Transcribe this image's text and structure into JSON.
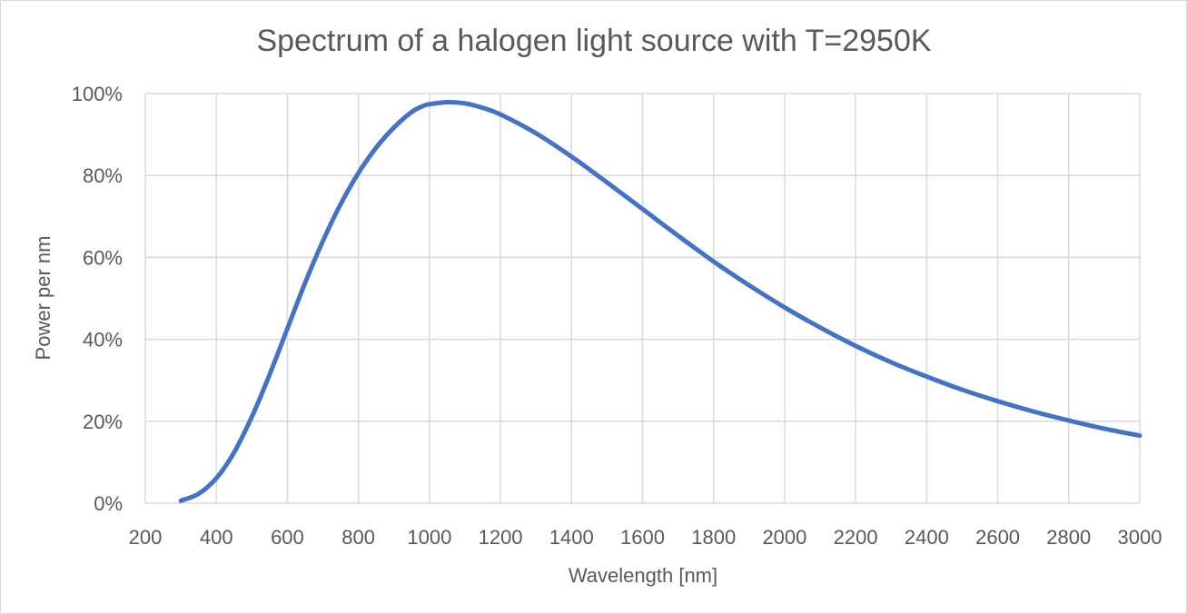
{
  "chart_data": {
    "type": "line",
    "title": "Spectrum of a halogen light source with T=2950K",
    "xlabel": "Wavelength [nm]",
    "ylabel": "Power per nm",
    "xlim": [
      200,
      3000
    ],
    "ylim": [
      0,
      100
    ],
    "x_ticks": [
      200,
      400,
      600,
      800,
      1000,
      1200,
      1400,
      1600,
      1800,
      2000,
      2200,
      2400,
      2600,
      2800,
      3000
    ],
    "x_tick_labels": [
      "200",
      "400",
      "600",
      "800",
      "1000",
      "1200",
      "1400",
      "1600",
      "1800",
      "2000",
      "2200",
      "2400",
      "2600",
      "2800",
      "3000"
    ],
    "y_ticks": [
      0,
      20,
      40,
      60,
      80,
      100
    ],
    "y_tick_labels": [
      "0%",
      "20%",
      "40%",
      "60%",
      "80%",
      "100%"
    ],
    "grid": true,
    "legend": "none",
    "series": [
      {
        "color": "#4472c4",
        "x": [
          300,
          350,
          400,
          450,
          500,
          550,
          600,
          650,
          700,
          750,
          800,
          850,
          900,
          950,
          983,
          1000,
          1050,
          1100,
          1150,
          1200,
          1300,
          1400,
          1500,
          1600,
          1700,
          1800,
          1900,
          2000,
          2100,
          2200,
          2300,
          2400,
          2500,
          2600,
          2700,
          2800,
          2900,
          3000
        ],
        "y": [
          0.6,
          2.3,
          6.1,
          12.4,
          21.1,
          31.4,
          42.6,
          53.8,
          64.0,
          73.0,
          80.6,
          86.8,
          91.7,
          95.5,
          97.0,
          97.4,
          97.9,
          97.6,
          96.5,
          94.9,
          90.3,
          84.6,
          78.3,
          71.8,
          65.3,
          59.0,
          53.2,
          47.8,
          42.9,
          38.4,
          34.4,
          30.9,
          27.7,
          24.9,
          22.4,
          20.2,
          18.2,
          16.5
        ]
      }
    ]
  }
}
